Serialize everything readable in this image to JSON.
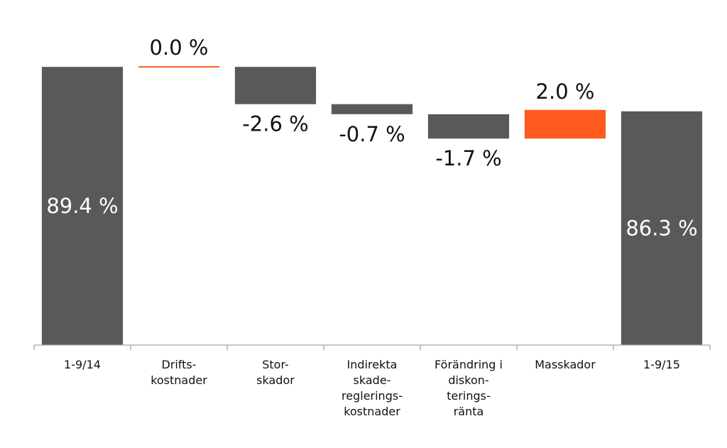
{
  "chart_data": {
    "type": "bar",
    "subtype": "waterfall",
    "title": "",
    "xlabel": "",
    "ylabel": "",
    "ylim": [
      70.0,
      90.5
    ],
    "grid": false,
    "legend": "none",
    "categories": [
      [
        "1-9/14"
      ],
      [
        "Drifts-",
        "kostnader"
      ],
      [
        "Stor-",
        "skador"
      ],
      [
        "Indirekta",
        "skade-",
        "reglerings-",
        "kostnader"
      ],
      [
        "Förändring i",
        "diskon-",
        "terings-",
        "ränta"
      ],
      [
        "Masskador"
      ],
      [
        "1-9/15"
      ]
    ],
    "values": [
      89.4,
      0.0,
      -2.6,
      -0.7,
      -1.7,
      2.0,
      86.3
    ],
    "kinds": [
      "total",
      "delta",
      "delta",
      "delta",
      "delta",
      "delta",
      "total"
    ],
    "data_labels": [
      "89.4 %",
      "0.0 %",
      "-2.6 %",
      "-0.7 %",
      "-1.7 %",
      "2.0 %",
      "86.3 %"
    ],
    "colors": {
      "total": "#595959",
      "decrease": "#595959",
      "increase": "#ff5a1f",
      "total_label": "#ffffff",
      "delta_label": "#111111",
      "axis": "#a6a6a6"
    }
  }
}
